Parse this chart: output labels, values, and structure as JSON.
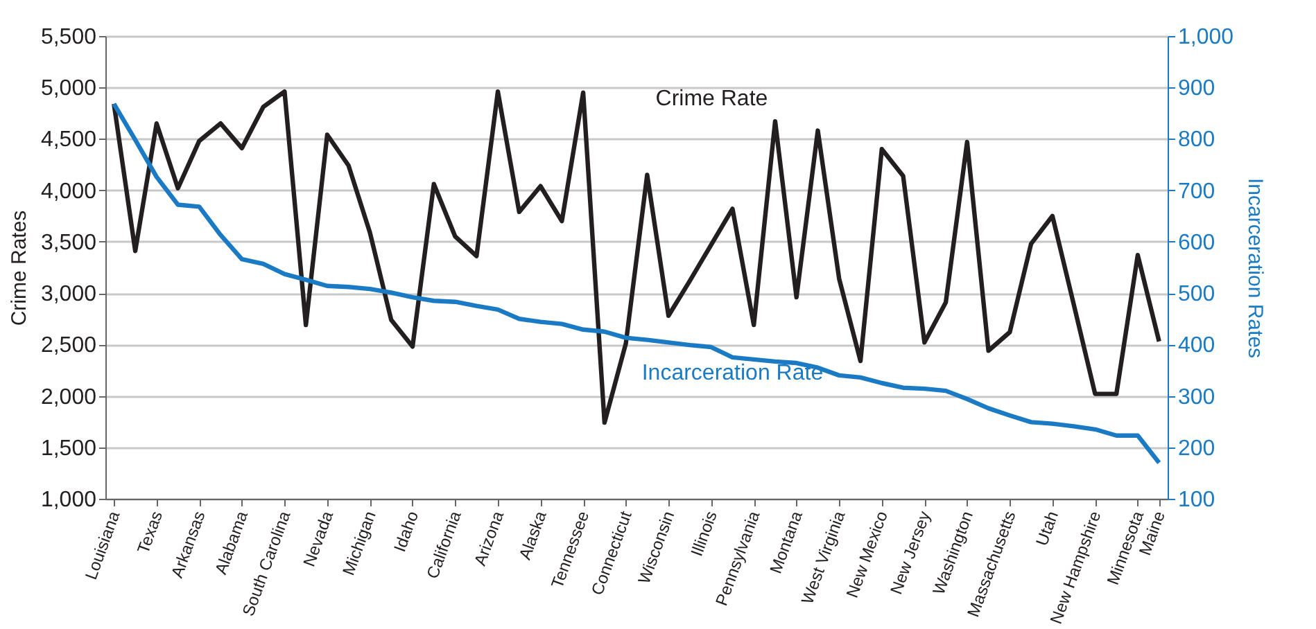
{
  "chart_data": {
    "type": "line",
    "categories": [
      "Louisiana",
      null,
      "Texas",
      null,
      "Arkansas",
      null,
      "Alabama",
      null,
      "South Carolina",
      null,
      "Nevada",
      null,
      "Michigan",
      null,
      "Idaho",
      null,
      "California",
      null,
      "Arizona",
      null,
      "Alaska",
      null,
      "Tennessee",
      null,
      "Connecticut",
      null,
      "Wisconsin",
      null,
      "Illinois",
      null,
      "Pennsylvania",
      null,
      "Montana",
      null,
      "West Virginia",
      null,
      "New Mexico",
      null,
      "New Jersey",
      null,
      "Washington",
      null,
      "Massachusetts",
      null,
      "Utah",
      null,
      "New Hampshire",
      null,
      "Minnesota",
      "Maine"
    ],
    "series": [
      {
        "name": "Crime Rate",
        "color": "#231f20",
        "values": [
          4840,
          3410,
          4650,
          4020,
          4480,
          4650,
          4410,
          4810,
          4960,
          2690,
          4540,
          4240,
          3590,
          2740,
          2480,
          4060,
          3550,
          3360,
          4960,
          3790,
          4040,
          3700,
          4950,
          1740,
          2510,
          4150,
          2780,
          3120,
          3470,
          3820,
          2690,
          4670,
          2960,
          4580,
          3140,
          2340,
          4400,
          4140,
          2520,
          2910,
          4470,
          2440,
          2620,
          3480,
          3750,
          2890,
          2020,
          2020,
          3370,
          2530
        ]
      },
      {
        "name": "Incarceration Rate",
        "color": "#1a7bc4",
        "axis": "y2",
        "values": [
          868,
          798,
          726,
          672,
          668,
          613,
          566,
          557,
          537,
          526,
          514,
          512,
          508,
          501,
          492,
          485,
          483,
          475,
          468,
          450,
          444,
          440,
          429,
          425,
          413,
          409,
          404,
          399,
          395,
          375,
          371,
          367,
          364,
          355,
          340,
          336,
          325,
          316,
          314,
          310,
          294,
          276,
          262,
          249,
          246,
          241,
          235,
          223,
          223,
          170
        ]
      }
    ],
    "ylabel": "Crime Rates",
    "y2label": "Incarceration Rates",
    "ylim": [
      1000,
      5500
    ],
    "yticks": [
      {
        "value": 1000,
        "label": "1,000"
      },
      {
        "value": 1500,
        "label": "1,500"
      },
      {
        "value": 2000,
        "label": "2,000"
      },
      {
        "value": 2500,
        "label": "2,500"
      },
      {
        "value": 3000,
        "label": "3,000"
      },
      {
        "value": 3500,
        "label": "3,500"
      },
      {
        "value": 4000,
        "label": "4,000"
      },
      {
        "value": 4500,
        "label": "4,500"
      },
      {
        "value": 5000,
        "label": "5,000"
      },
      {
        "value": 5500,
        "label": "5,500"
      }
    ],
    "y2lim": [
      100,
      1000
    ],
    "y2ticks": [
      100,
      200,
      300,
      400,
      500,
      600,
      700,
      800,
      900,
      {
        "value": 1000,
        "label": "1,000"
      }
    ],
    "grid": "y",
    "marker": "none",
    "line_style": "solid"
  }
}
